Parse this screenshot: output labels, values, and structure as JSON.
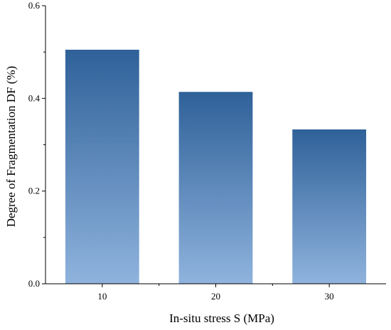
{
  "chart_data": {
    "type": "bar",
    "categories": [
      "10",
      "20",
      "30"
    ],
    "values": [
      0.505,
      0.414,
      0.333
    ],
    "xlabel": "In-situ stress S (MPa)",
    "ylabel": "Degree of Fragmentation DF (%)",
    "ylim": [
      0,
      0.6
    ],
    "yticks": [
      "0.0",
      "0.2",
      "0.4",
      "0.6"
    ],
    "grid": false,
    "legend": "none",
    "colors": {
      "bar_top": "#2f6199",
      "bar_bottom": "#8fb3dd",
      "axis": "#000000"
    }
  }
}
